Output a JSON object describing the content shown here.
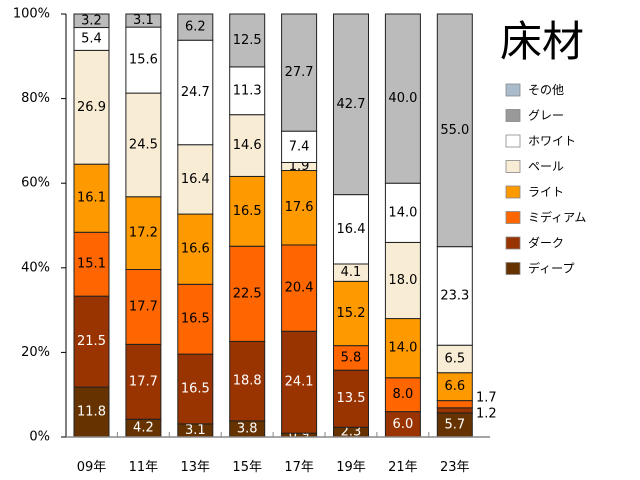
{
  "chart_data": {
    "type": "bar",
    "stacked": true,
    "title": "床材",
    "xlabel": "",
    "ylabel": "",
    "ylim": [
      0,
      100
    ],
    "yticks": [
      "0%",
      "20%",
      "40%",
      "60%",
      "80%",
      "100%"
    ],
    "categories": [
      "09年",
      "11年",
      "13年",
      "15年",
      "17年",
      "19年",
      "21年",
      "23年"
    ],
    "legend_position": "right",
    "series": [
      {
        "name": "ディープ",
        "color": "#663300",
        "label_color": "#ffffff",
        "values": [
          11.8,
          4.2,
          3.1,
          3.8,
          0.9,
          2.3,
          0,
          5.7
        ]
      },
      {
        "name": "ダーク",
        "color": "#993300",
        "label_color": "#ffffff",
        "values": [
          21.5,
          17.7,
          16.5,
          18.8,
          24.1,
          13.5,
          6.0,
          1.2
        ]
      },
      {
        "name": "ミディアム",
        "color": "#ff6600",
        "label_color": "#000000",
        "values": [
          15.1,
          17.7,
          16.5,
          22.5,
          20.4,
          5.8,
          8.0,
          1.7
        ]
      },
      {
        "name": "ライト",
        "color": "#ff9900",
        "label_color": "#000000",
        "values": [
          16.1,
          17.2,
          16.6,
          16.5,
          17.6,
          15.2,
          14.0,
          6.6
        ]
      },
      {
        "name": "ペール",
        "color": "#f8ecd4",
        "label_color": "#000000",
        "values": [
          26.9,
          24.5,
          16.4,
          14.6,
          1.9,
          4.1,
          18.0,
          6.5
        ]
      },
      {
        "name": "ホワイト",
        "color": "#ffffff",
        "label_color": "#000000",
        "values": [
          5.4,
          15.6,
          24.7,
          11.3,
          7.4,
          16.4,
          14.0,
          23.3
        ]
      },
      {
        "name": "グレー",
        "color": "#bbbbbb",
        "legend_color": "#999999",
        "label_color": "#000000",
        "values": [
          3.2,
          3.1,
          6.2,
          12.5,
          27.7,
          42.7,
          40.0,
          55.0
        ]
      },
      {
        "name": "その他",
        "color": "#aabbcc",
        "label_color": "#000000",
        "values": [
          0,
          0,
          0,
          0,
          0,
          0,
          0,
          0
        ]
      }
    ]
  }
}
